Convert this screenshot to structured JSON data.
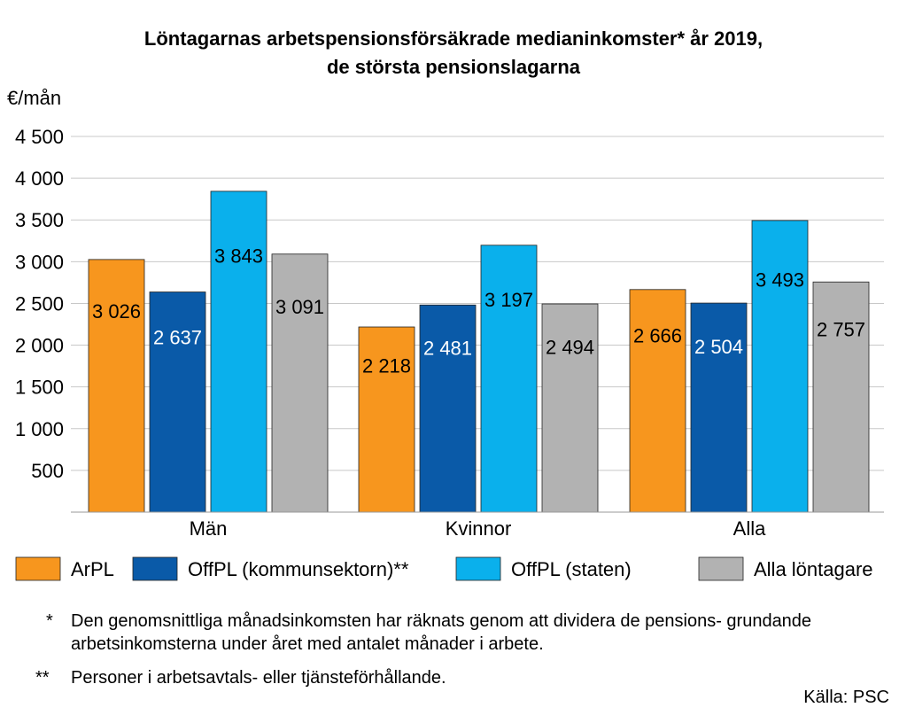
{
  "chart_data": {
    "type": "bar",
    "title_line1": "Löntagarnas arbetspensionsförsäkrade medianinkomster* år 2019,",
    "title_line2": "de största pensionslagarna",
    "ylabel": "€/mån",
    "ylim": [
      0,
      4500
    ],
    "ytick_values": [
      500,
      1000,
      1500,
      2000,
      2500,
      3000,
      3500,
      4000,
      4500
    ],
    "ytick_labels": [
      "500",
      "1 000",
      "1 500",
      "2 000",
      "2 500",
      "3 000",
      "3 500",
      "4 000",
      "4 500"
    ],
    "grid": true,
    "categories": [
      "Män",
      "Kvinnor",
      "Alla"
    ],
    "series": [
      {
        "name": "ArPL",
        "color": "#f7961e",
        "values": [
          3026,
          2218,
          2666
        ],
        "labels": [
          "3 026",
          "2 218",
          "2 666"
        ],
        "label_color": "#000000"
      },
      {
        "name": "OffPL (kommunsektorn)**",
        "color": "#0a5aa8",
        "values": [
          2637,
          2481,
          2504
        ],
        "labels": [
          "2 637",
          "2 481",
          "2 504"
        ],
        "label_color": "#ffffff"
      },
      {
        "name": "OffPL (staten)",
        "color": "#0ab0ec",
        "values": [
          3843,
          3197,
          3493
        ],
        "labels": [
          "3 843",
          "3 197",
          "3 493"
        ],
        "label_color": "#000000"
      },
      {
        "name": "Alla löntagare",
        "color": "#b2b2b2",
        "values": [
          3091,
          2494,
          2757
        ],
        "labels": [
          "3 091",
          "2 494",
          "2 757"
        ],
        "label_color": "#000000"
      }
    ],
    "legend_position": "bottom"
  },
  "footnotes": {
    "fn1_mark": "*",
    "fn1_text": "Den genomsnittliga månadsinkomsten har räknats genom att dividera de pensions- grundande arbetsinkomsterna under året med antalet månader i arbete.",
    "fn2_mark": "**",
    "fn2_text": "Personer i arbetsavtals- eller tjänsteförhållande."
  },
  "source": "Källa: PSC"
}
